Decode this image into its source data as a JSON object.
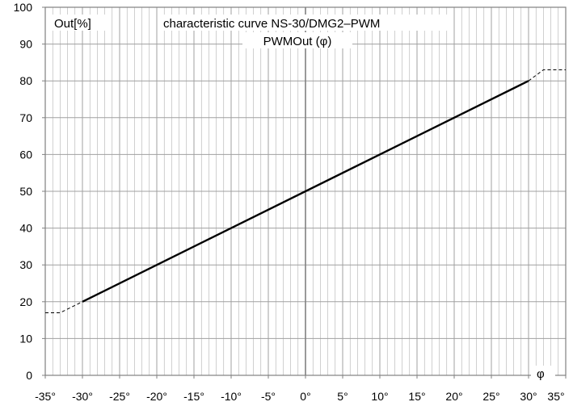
{
  "chart_data": {
    "type": "line",
    "title": "characteristic curve NS-30/DMG2–PWM",
    "subtitle": "PWMOut (φ)",
    "ylabel": "Out[%]",
    "xlabel": "φ",
    "xlim": [
      -35,
      35
    ],
    "ylim": [
      0,
      100
    ],
    "x_ticks": [
      -35,
      -30,
      -25,
      -20,
      -15,
      -10,
      -5,
      0,
      5,
      10,
      15,
      20,
      25,
      30,
      35
    ],
    "x_tick_labels": [
      "-35°",
      "-30°",
      "-25°",
      "-20°",
      "-15°",
      "-10°",
      "-5°",
      "0°",
      "5°",
      "10°",
      "15°",
      "20°",
      "25°",
      "30°",
      "35°"
    ],
    "y_ticks": [
      0,
      10,
      20,
      30,
      40,
      50,
      60,
      70,
      80,
      90,
      100
    ],
    "y_tick_labels": [
      "0",
      "10",
      "20",
      "30",
      "40",
      "50",
      "60",
      "70",
      "80",
      "90",
      "100"
    ],
    "grid": true,
    "series": [
      {
        "style": "solid",
        "x": [
          -30,
          30
        ],
        "y": [
          20,
          80
        ]
      },
      {
        "style": "dashed",
        "x": [
          -35,
          -33,
          -30
        ],
        "y": [
          17,
          17,
          20
        ]
      },
      {
        "style": "dashed",
        "x": [
          30,
          32,
          35
        ],
        "y": [
          80,
          83,
          83
        ]
      }
    ]
  },
  "colors": {
    "grid": "#a0a0a0",
    "axis": "#808080",
    "line": "#000000"
  }
}
